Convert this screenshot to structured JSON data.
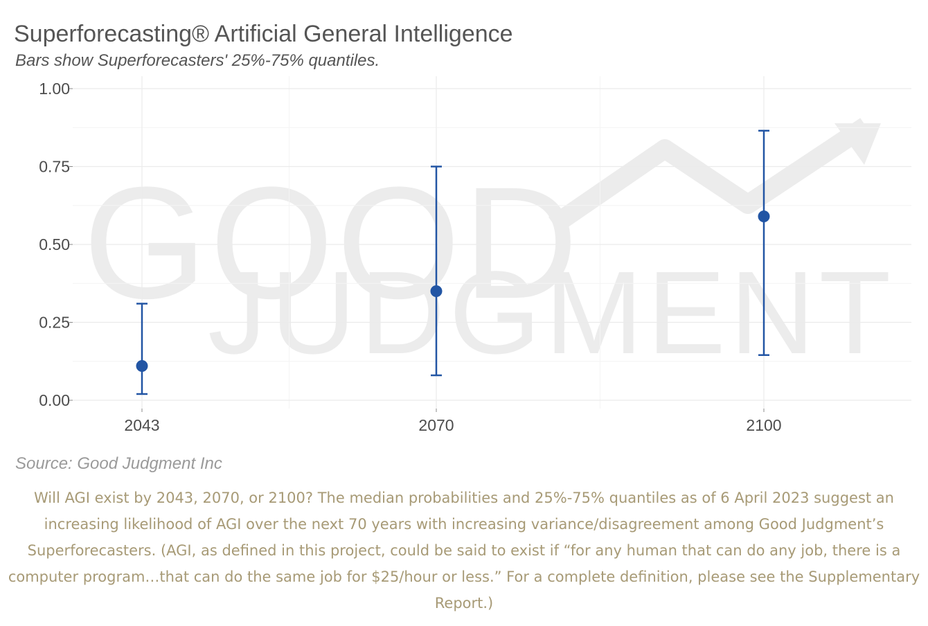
{
  "chart_data": {
    "type": "scatter",
    "title": "Superforecasting® Artificial General Intelligence",
    "subtitle": "Bars show Superforecasters' 25%-75% quantiles.",
    "xlabel": "",
    "ylabel": "",
    "categories": [
      "2043",
      "2070",
      "2100"
    ],
    "values": [
      0.11,
      0.35,
      0.59
    ],
    "q25": [
      0.02,
      0.08,
      0.145
    ],
    "q75": [
      0.31,
      0.75,
      0.865
    ],
    "ylim": [
      0,
      1
    ],
    "yticks": [
      "0.00",
      "0.25",
      "0.50",
      "0.75",
      "1.00"
    ],
    "grid": true,
    "color": "#2255a4"
  },
  "watermark": {
    "line1": "GOOD",
    "line2": "JUDGMENT"
  },
  "source": "Source: Good Judgment Inc",
  "caption": "Will AGI exist by 2043, 2070, or 2100? The median probabilities and 25%-75% quantiles as of 6 April 2023 suggest an increasing likelihood of AGI over the next 70 years with increasing variance/disagreement among Good Judgment’s Superforecasters. (AGI, as defined in this project, could be said to exist if “for any human that can do any job, there is a computer program…that can do the same job for $25/hour or less.” For a complete definition, please see the Supplementary Report.)"
}
